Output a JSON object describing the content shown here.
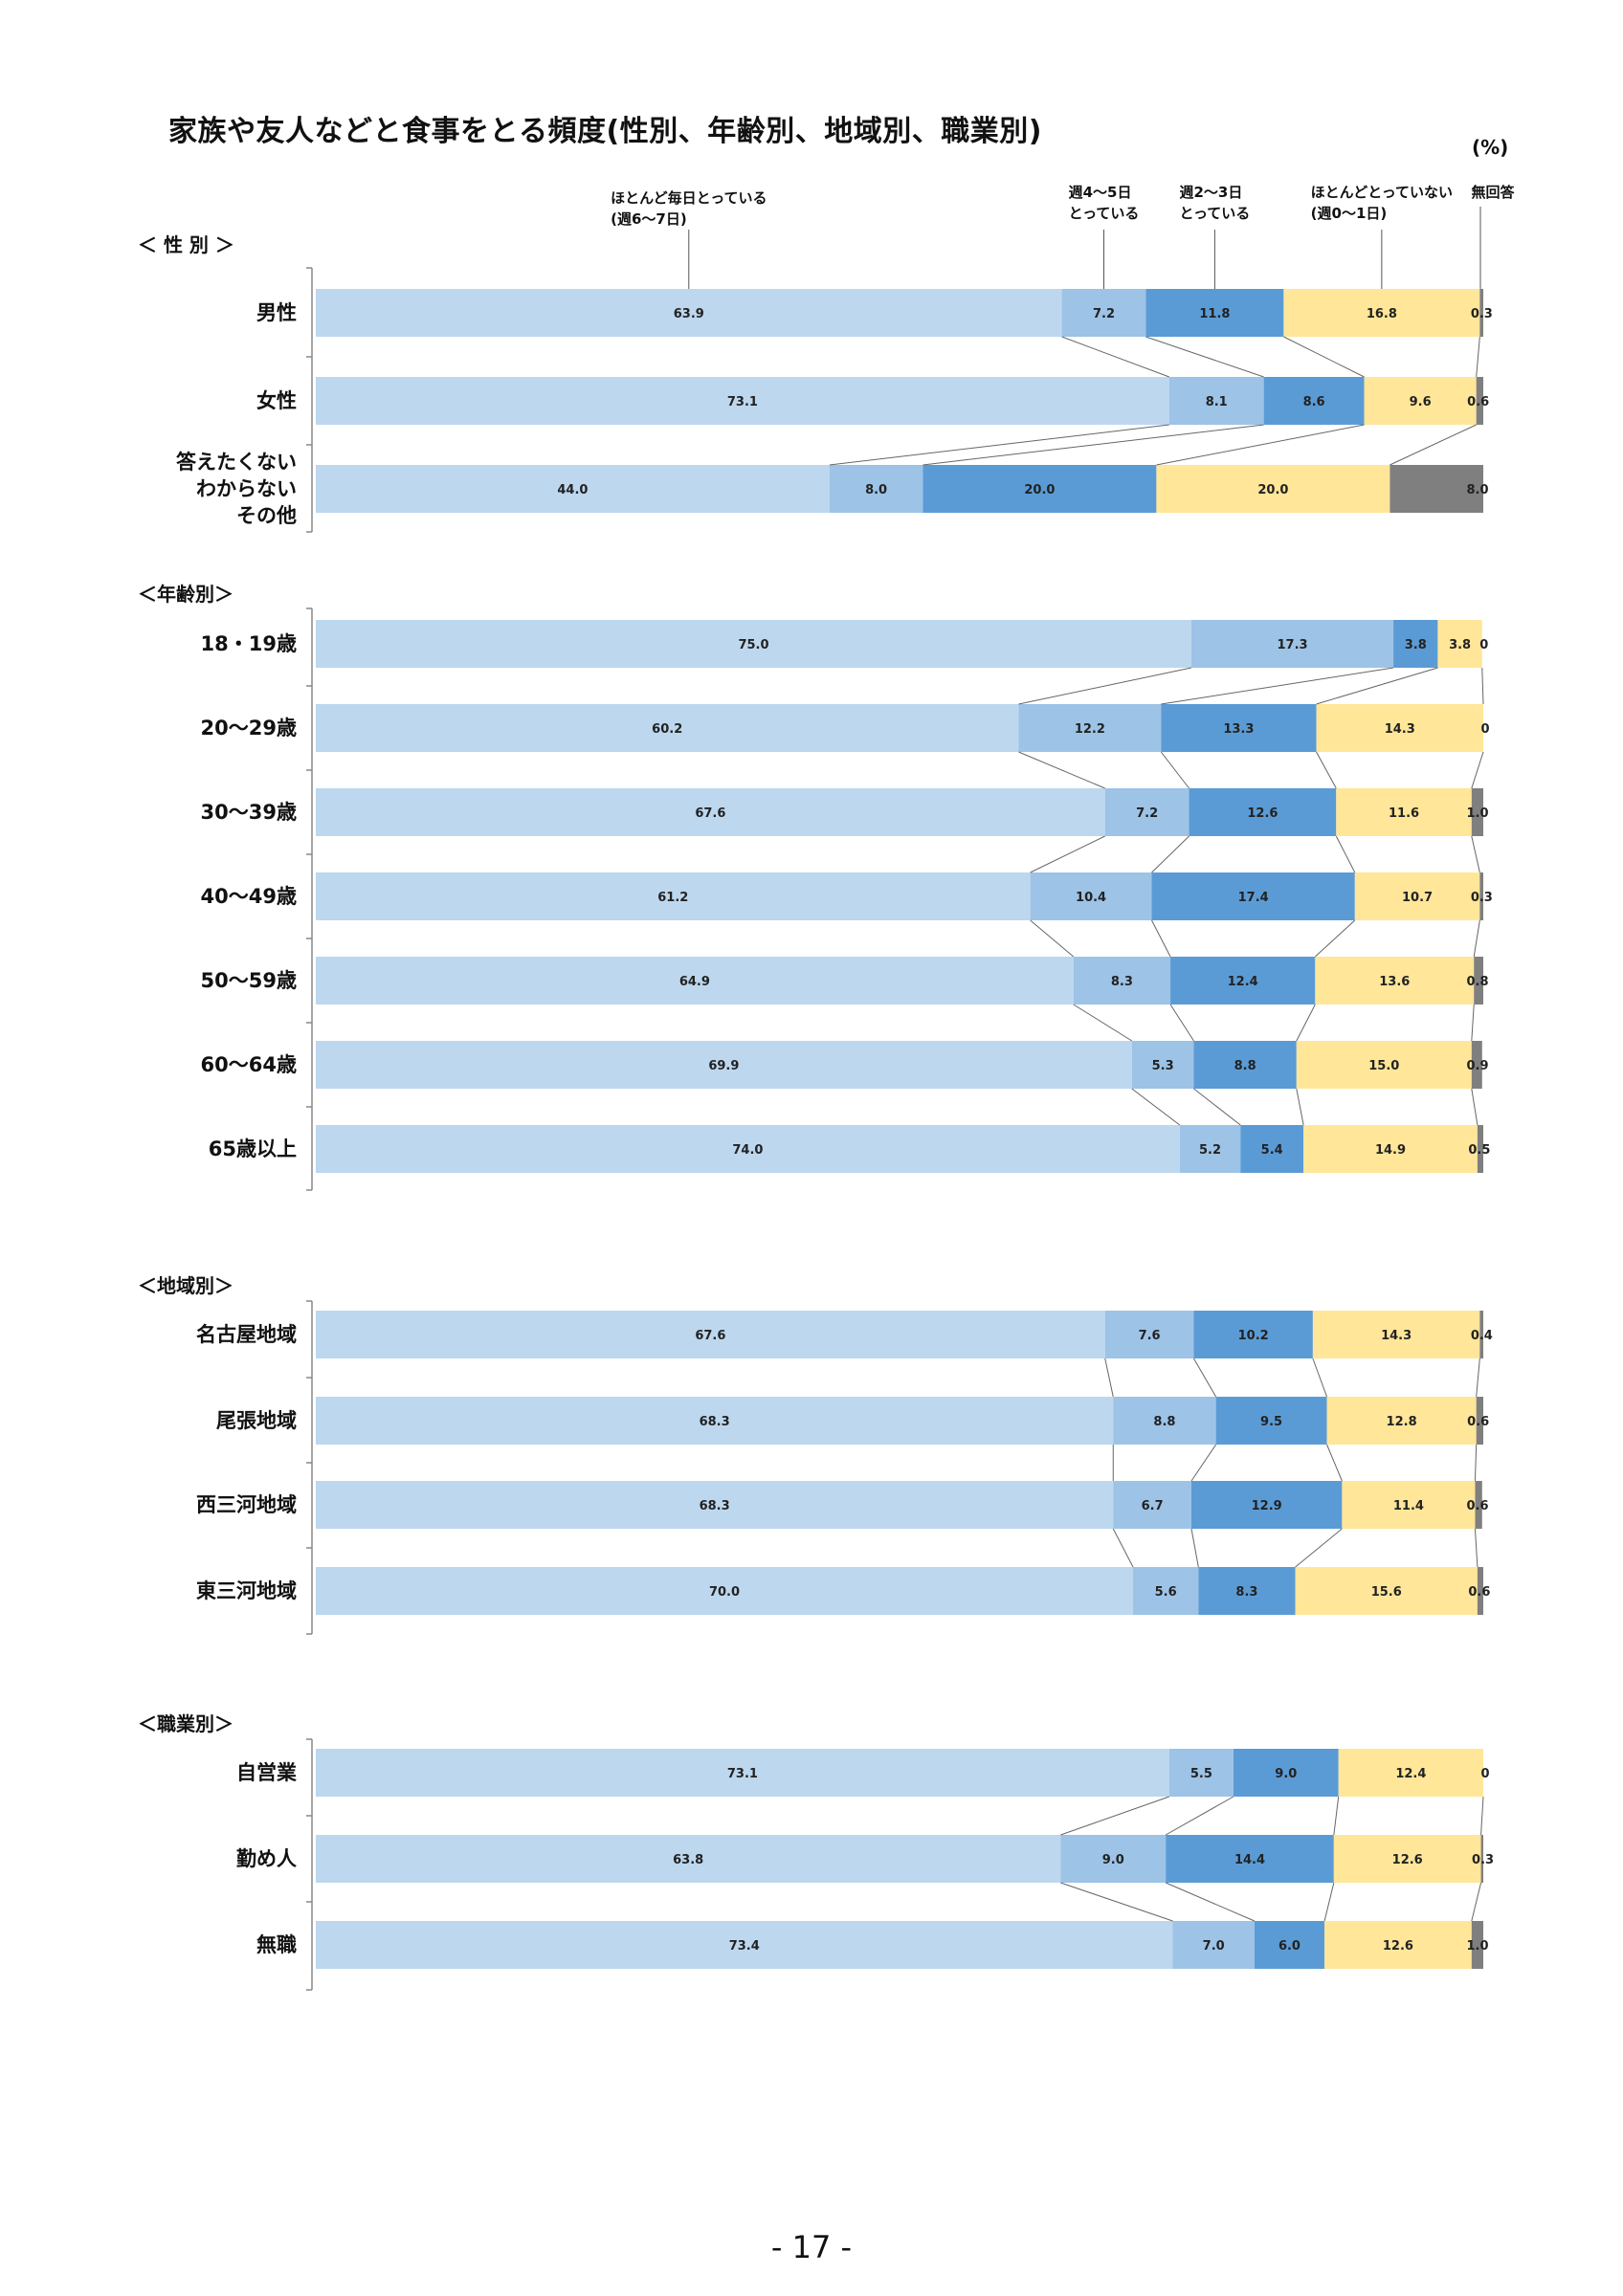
{
  "title": "家族や友人などと食事をとる頻度(性別、年齢別、地域別、職業別)",
  "unit_label": "(%)",
  "page_number": "- 17 -",
  "colors": [
    "#bdd7ee",
    "#9dc3e6",
    "#5b9bd5",
    "#ffe699",
    "#7f7f7f"
  ],
  "legend": [
    {
      "lines": [
        "ほとんど毎日とっている",
        "(週6〜7日)"
      ]
    },
    {
      "lines": [
        "週4〜5日",
        "とっている"
      ]
    },
    {
      "lines": [
        "週2〜3日",
        "とっている"
      ]
    },
    {
      "lines": [
        "ほとんどとっていない",
        "(週0〜1日)"
      ]
    },
    {
      "lines": [
        "無回答"
      ]
    }
  ],
  "chart_data": {
    "type": "bar",
    "stacked": true,
    "orientation": "horizontal",
    "xlim": [
      0,
      100
    ],
    "series_names": [
      "ほとんど毎日とっている(週6〜7日)",
      "週4〜5日とっている",
      "週2〜3日とっている",
      "ほとんどとっていない(週0〜1日)",
      "無回答"
    ],
    "groups": [
      {
        "label": "＜ 性 別 ＞",
        "rows": [
          {
            "label": [
              "男性"
            ],
            "values": [
              63.9,
              7.2,
              11.8,
              16.8,
              0.3
            ],
            "texts": [
              "63.9",
              "7.2",
              "11.8",
              "16.8",
              "0.3"
            ]
          },
          {
            "label": [
              "女性"
            ],
            "values": [
              73.1,
              8.1,
              8.6,
              9.6,
              0.6
            ],
            "texts": [
              "73.1",
              "8.1",
              "8.6",
              "9.6",
              "0.6"
            ]
          },
          {
            "label": [
              "答えたくない",
              "わからない",
              "その他"
            ],
            "values": [
              44.0,
              8.0,
              20.0,
              20.0,
              8.0
            ],
            "texts": [
              "44.0",
              "8.0",
              "20.0",
              "20.0",
              "8.0"
            ]
          }
        ]
      },
      {
        "label": "＜年齢別＞",
        "rows": [
          {
            "label": [
              "18・19歳"
            ],
            "values": [
              75.0,
              17.3,
              3.8,
              3.8,
              0
            ],
            "texts": [
              "75.0",
              "17.3",
              "3.8",
              "3.8",
              "0"
            ]
          },
          {
            "label": [
              "20〜29歳"
            ],
            "values": [
              60.2,
              12.2,
              13.3,
              14.3,
              0
            ],
            "texts": [
              "60.2",
              "12.2",
              "13.3",
              "14.3",
              "0"
            ]
          },
          {
            "label": [
              "30〜39歳"
            ],
            "values": [
              67.6,
              7.2,
              12.6,
              11.6,
              1.0
            ],
            "texts": [
              "67.6",
              "7.2",
              "12.6",
              "11.6",
              "1.0"
            ]
          },
          {
            "label": [
              "40〜49歳"
            ],
            "values": [
              61.2,
              10.4,
              17.4,
              10.7,
              0.3
            ],
            "texts": [
              "61.2",
              "10.4",
              "17.4",
              "10.7",
              "0.3"
            ]
          },
          {
            "label": [
              "50〜59歳"
            ],
            "values": [
              64.9,
              8.3,
              12.4,
              13.6,
              0.8
            ],
            "texts": [
              "64.9",
              "8.3",
              "12.4",
              "13.6",
              "0.8"
            ]
          },
          {
            "label": [
              "60〜64歳"
            ],
            "values": [
              69.9,
              5.3,
              8.8,
              15.0,
              0.9
            ],
            "texts": [
              "69.9",
              "5.3",
              "8.8",
              "15.0",
              "0.9"
            ]
          },
          {
            "label": [
              "65歳以上"
            ],
            "values": [
              74.0,
              5.2,
              5.4,
              14.9,
              0.5
            ],
            "texts": [
              "74.0",
              "5.2",
              "5.4",
              "14.9",
              "0.5"
            ]
          }
        ]
      },
      {
        "label": "＜地域別＞",
        "rows": [
          {
            "label": [
              "名古屋地域"
            ],
            "values": [
              67.6,
              7.6,
              10.2,
              14.3,
              0.4
            ],
            "texts": [
              "67.6",
              "7.6",
              "10.2",
              "14.3",
              "0.4"
            ]
          },
          {
            "label": [
              "尾張地域"
            ],
            "values": [
              68.3,
              8.8,
              9.5,
              12.8,
              0.6
            ],
            "texts": [
              "68.3",
              "8.8",
              "9.5",
              "12.8",
              "0.6"
            ]
          },
          {
            "label": [
              "西三河地域"
            ],
            "values": [
              68.3,
              6.7,
              12.9,
              11.4,
              0.6
            ],
            "texts": [
              "68.3",
              "6.7",
              "12.9",
              "11.4",
              "0.6"
            ]
          },
          {
            "label": [
              "東三河地域"
            ],
            "values": [
              70.0,
              5.6,
              8.3,
              15.6,
              0.6
            ],
            "texts": [
              "70.0",
              "5.6",
              "8.3",
              "15.6",
              "0.6"
            ]
          }
        ]
      },
      {
        "label": "＜職業別＞",
        "rows": [
          {
            "label": [
              "自営業"
            ],
            "values": [
              73.1,
              5.5,
              9.0,
              12.4,
              0
            ],
            "texts": [
              "73.1",
              "5.5",
              "9.0",
              "12.4",
              "0"
            ]
          },
          {
            "label": [
              "勤め人"
            ],
            "values": [
              63.8,
              9.0,
              14.4,
              12.6,
              0.3
            ],
            "texts": [
              "63.8",
              "9.0",
              "14.4",
              "12.6",
              "0.3"
            ]
          },
          {
            "label": [
              "無職"
            ],
            "values": [
              73.4,
              7.0,
              6.0,
              12.6,
              1.0
            ],
            "texts": [
              "73.4",
              "7.0",
              "6.0",
              "12.6",
              "1.0"
            ]
          }
        ]
      }
    ]
  }
}
